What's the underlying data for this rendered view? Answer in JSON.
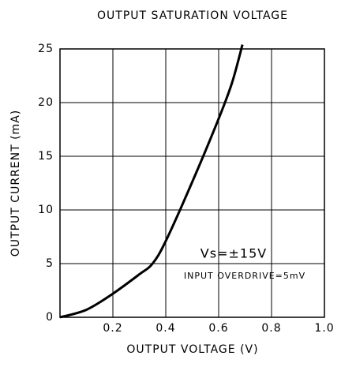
{
  "chart_data": {
    "type": "line",
    "title": "OUTPUT SATURATION VOLTAGE",
    "xlabel": "OUTPUT VOLTAGE (V)",
    "ylabel": "OUTPUT CURRENT (mA)",
    "annotations": [
      "Vs=±15V",
      "INPUT OVERDRIVE=5mV"
    ],
    "x": [
      0,
      0.1,
      0.2,
      0.3,
      0.35,
      0.4,
      0.5,
      0.6,
      0.65,
      0.69
    ],
    "values": [
      0,
      0.7,
      2.2,
      4,
      5,
      7.1,
      12.6,
      18.5,
      21.8,
      25.4
    ],
    "color": "#000000",
    "xlim": [
      0,
      1
    ],
    "xticks": [
      0.2,
      0.4,
      0.6,
      0.8,
      {
        "value": 1,
        "label": "1.0"
      }
    ],
    "ylim": [
      0,
      25
    ],
    "yticks": [
      0,
      5,
      10,
      15,
      20,
      25
    ],
    "grid": true
  }
}
